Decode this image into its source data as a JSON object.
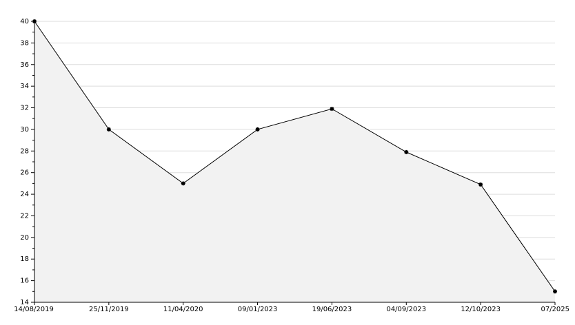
{
  "chart_data": {
    "type": "line",
    "categories": [
      "14/08/2019",
      "25/11/2019",
      "11/04/2020",
      "09/01/2023",
      "19/06/2023",
      "04/09/2023",
      "12/10/2023",
      "07/2025"
    ],
    "values": [
      40,
      30,
      25,
      30,
      31.9,
      27.9,
      24.9,
      15
    ],
    "color": "#000000",
    "fill": "#f2f2f2",
    "ylim": [
      14,
      40
    ],
    "yticks": [
      14,
      16,
      18,
      20,
      22,
      24,
      26,
      28,
      30,
      32,
      34,
      36,
      38,
      40
    ],
    "grid": true
  }
}
